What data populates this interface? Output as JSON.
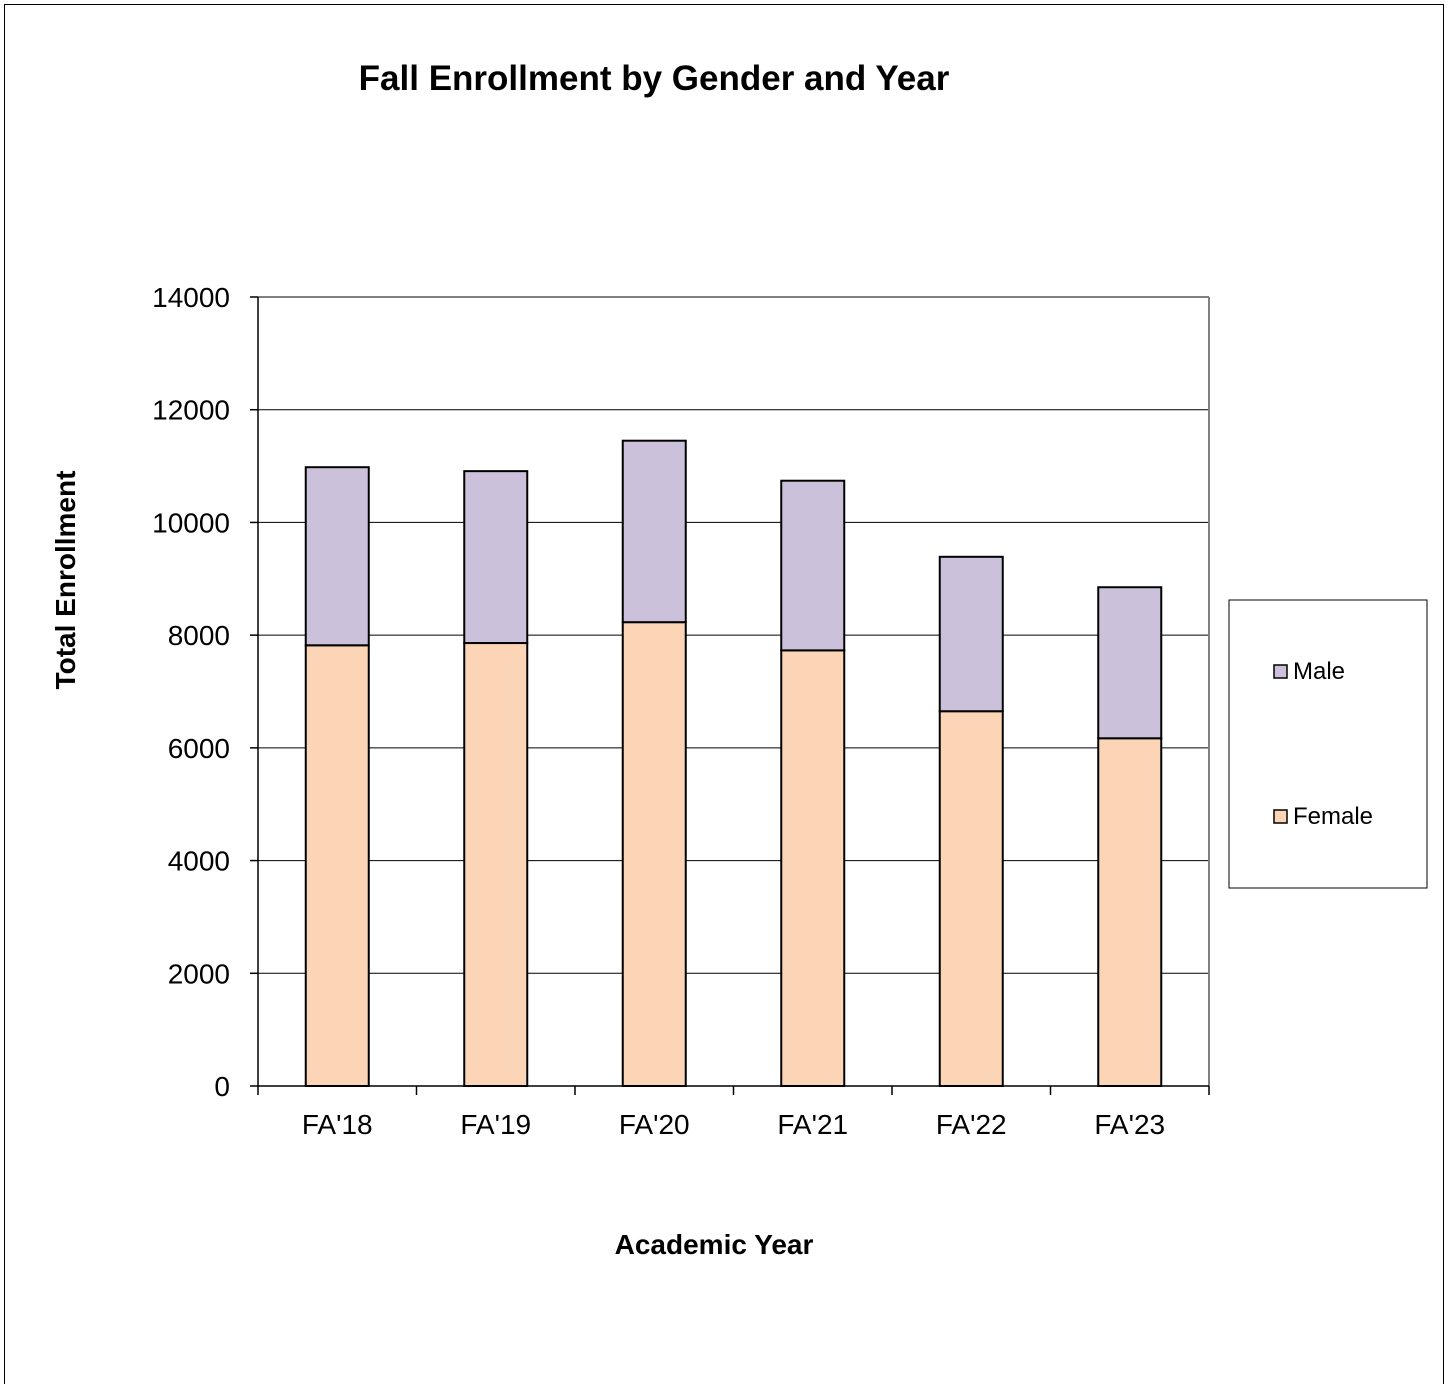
{
  "chart_data": {
    "type": "bar",
    "stacked": true,
    "title": "Fall Enrollment by Gender and Year",
    "xlabel": "Academic Year",
    "ylabel": "Total Enrollment",
    "categories": [
      "FA'18",
      "FA'19",
      "FA'20",
      "FA'21",
      "FA'22",
      "FA'23"
    ],
    "series": [
      {
        "name": "Female",
        "values": [
          7820,
          7860,
          8230,
          7730,
          6650,
          6170
        ],
        "color": "#fbd5b5"
      },
      {
        "name": "Male",
        "values": [
          3160,
          3050,
          3220,
          3010,
          2740,
          2680
        ],
        "color": "#ccc1da"
      }
    ],
    "ylim": [
      0,
      14000
    ],
    "yticks": [
      0,
      2000,
      4000,
      6000,
      8000,
      10000,
      12000,
      14000
    ],
    "grid": true,
    "legend_position": "right",
    "legend_order": [
      "Male",
      "Female"
    ]
  }
}
